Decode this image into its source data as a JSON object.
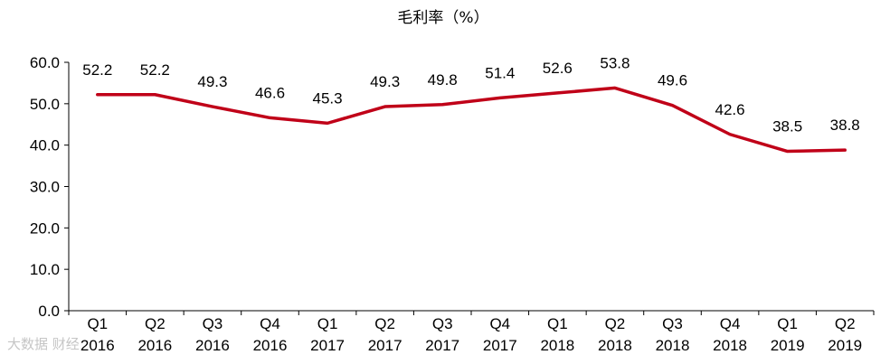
{
  "chart_data": {
    "type": "line",
    "title": "毛利率（%）",
    "categories": [
      "Q1 2016",
      "Q2 2016",
      "Q3 2016",
      "Q4 2016",
      "Q1 2017",
      "Q2 2017",
      "Q3 2017",
      "Q4 2017",
      "Q1 2018",
      "Q2 2018",
      "Q3 2018",
      "Q4 2018",
      "Q1 2019",
      "Q2 2019"
    ],
    "category_lines": [
      [
        "Q1",
        "2016"
      ],
      [
        "Q2",
        "2016"
      ],
      [
        "Q3",
        "2016"
      ],
      [
        "Q4",
        "2016"
      ],
      [
        "Q1",
        "2017"
      ],
      [
        "Q2",
        "2017"
      ],
      [
        "Q3",
        "2017"
      ],
      [
        "Q4",
        "2017"
      ],
      [
        "Q1",
        "2018"
      ],
      [
        "Q2",
        "2018"
      ],
      [
        "Q3",
        "2018"
      ],
      [
        "Q4",
        "2018"
      ],
      [
        "Q1",
        "2019"
      ],
      [
        "Q2",
        "2019"
      ]
    ],
    "values": [
      52.2,
      52.2,
      49.3,
      46.6,
      45.3,
      49.3,
      49.8,
      51.4,
      52.6,
      53.8,
      49.6,
      42.6,
      38.5,
      38.8
    ],
    "data_labels": [
      "52.2",
      "52.2",
      "49.3",
      "46.6",
      "45.3",
      "49.3",
      "49.8",
      "51.4",
      "52.6",
      "53.8",
      "49.6",
      "42.6",
      "38.5",
      "38.8"
    ],
    "ylim": [
      0,
      60
    ],
    "yticks": [
      0,
      10,
      20,
      30,
      40,
      50,
      60
    ],
    "ytick_labels": [
      "0.0",
      "10.0",
      "20.0",
      "30.0",
      "40.0",
      "50.0",
      "60.0"
    ],
    "xlabel": "",
    "ylabel": "",
    "grid": false,
    "legend": "none",
    "series_color": "#c00018"
  },
  "watermark": "大数据 财经"
}
